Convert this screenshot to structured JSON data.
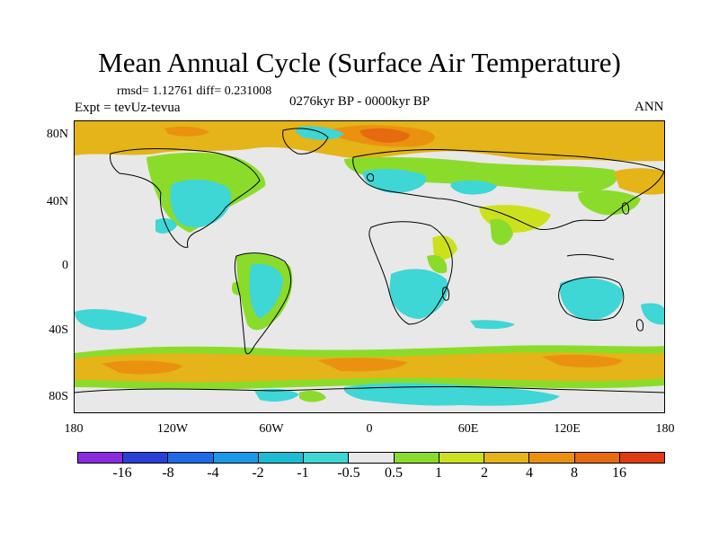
{
  "title": "Mean Annual Cycle (Surface Air Temperature)",
  "stats_text": "rmsd= 1.12761 diff= 0.231008",
  "experiment": "Expt = tevUz-tevua",
  "period": "0276kyr BP - 0000kyr BP",
  "season": "ANN",
  "y_axis_labels": [
    "80N",
    "40N",
    "0",
    "40S",
    "80S"
  ],
  "x_axis_labels": [
    "180",
    "120W",
    "60W",
    "0",
    "60E",
    "120E",
    "180"
  ],
  "colorbar": {
    "colors": [
      "#8a2be2",
      "#2a3fd8",
      "#1e6be8",
      "#1a9ae6",
      "#1bbcd4",
      "#3fd6d6",
      "#e8e8e8",
      "#8bdc2a",
      "#cde01e",
      "#e4b418",
      "#ea9210",
      "#e66a10",
      "#e03c10"
    ],
    "labels": [
      "-16",
      "-8",
      "-4",
      "-2",
      "-1",
      "-0.5",
      "0.5",
      "1",
      "2",
      "4",
      "8",
      "16"
    ]
  },
  "map_colors": {
    "ocean_neutral": "#e8e8e8",
    "cyan": "#3fd6d6",
    "green": "#8bdc2a",
    "yellow": "#cde01e",
    "orange": "#e4b418",
    "dark_orange": "#ea9210",
    "red_orange": "#e66a10"
  }
}
